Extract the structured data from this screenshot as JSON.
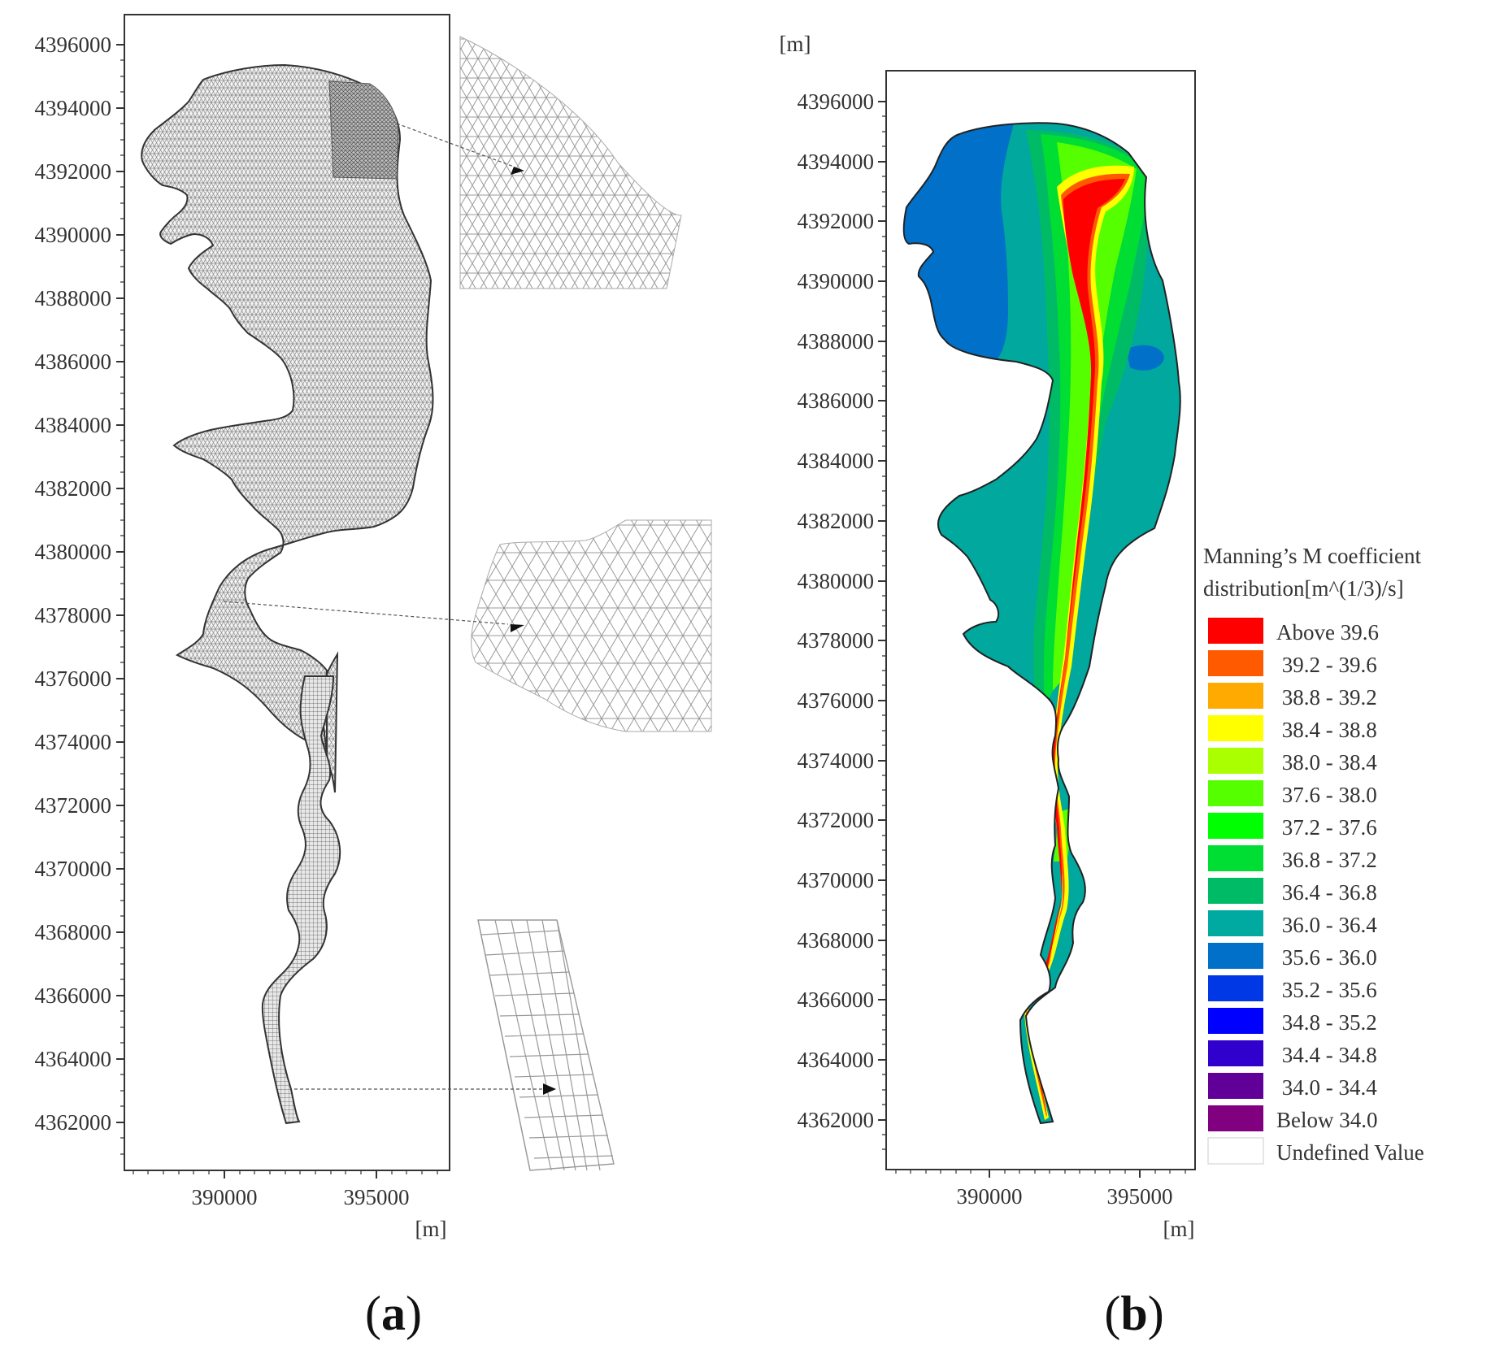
{
  "panel_a": {
    "label": "a",
    "y_ticks": [
      "4396000",
      "4394000",
      "4392000",
      "4390000",
      "4388000",
      "4386000",
      "4384000",
      "4382000",
      "4380000",
      "4378000",
      "4376000",
      "4374000",
      "4372000",
      "4370000",
      "4368000",
      "4366000",
      "4364000",
      "4362000"
    ],
    "x_ticks": [
      "390000",
      "395000"
    ],
    "x_unit": "[m]"
  },
  "panel_b": {
    "label": "b",
    "y_ticks": [
      "4396000",
      "4394000",
      "4392000",
      "4390000",
      "4388000",
      "4386000",
      "4384000",
      "4382000",
      "4380000",
      "4378000",
      "4376000",
      "4374000",
      "4372000",
      "4370000",
      "4368000",
      "4366000",
      "4364000",
      "4362000"
    ],
    "x_ticks": [
      "390000",
      "395000"
    ],
    "x_unit": "[m]",
    "y_unit": "[m]",
    "legend": {
      "title_line1": "Manning’s M coefficient",
      "title_line2": "distribution[m^(1/3)/s]",
      "items": [
        {
          "label": "Above 39.6",
          "color": "#ff0000"
        },
        {
          "label": " 39.2 - 39.6",
          "color": "#ff5a00"
        },
        {
          "label": " 38.8 - 39.2",
          "color": "#ffaa00"
        },
        {
          "label": " 38.4 - 38.8",
          "color": "#ffff00"
        },
        {
          "label": " 38.0 - 38.4",
          "color": "#aaff00"
        },
        {
          "label": " 37.6 - 38.0",
          "color": "#55ff00"
        },
        {
          "label": " 37.2 - 37.6",
          "color": "#00ff00"
        },
        {
          "label": " 36.8 - 37.2",
          "color": "#00dd33"
        },
        {
          "label": " 36.4 - 36.8",
          "color": "#00bb66"
        },
        {
          "label": " 36.0 - 36.4",
          "color": "#00aaa0"
        },
        {
          "label": " 35.6 - 36.0",
          "color": "#0070c8"
        },
        {
          "label": " 35.2 - 35.6",
          "color": "#0038e6"
        },
        {
          "label": " 34.8 - 35.2",
          "color": "#0000ff"
        },
        {
          "label": " 34.4 - 34.8",
          "color": "#3000cc"
        },
        {
          "label": " 34.0 - 34.4",
          "color": "#600099"
        },
        {
          "label": "Below 34.0",
          "color": "#800080"
        },
        {
          "label": "Undefined Value",
          "color": "#ffffff"
        }
      ]
    }
  }
}
